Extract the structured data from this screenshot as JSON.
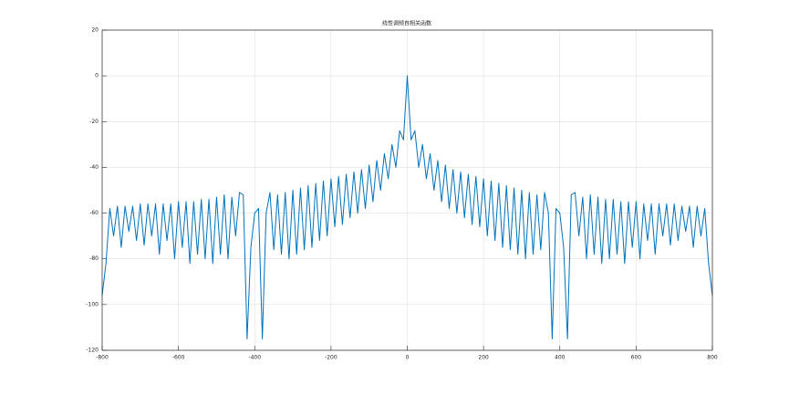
{
  "chart_data": {
    "type": "line",
    "title": "线性调频自相关函数",
    "x": [
      -800,
      -790,
      -780,
      -770,
      -760,
      -750,
      -740,
      -730,
      -720,
      -710,
      -700,
      -690,
      -680,
      -670,
      -660,
      -650,
      -640,
      -630,
      -620,
      -610,
      -600,
      -590,
      -580,
      -570,
      -560,
      -550,
      -540,
      -530,
      -520,
      -510,
      -500,
      -490,
      -480,
      -470,
      -460,
      -450,
      -440,
      -430,
      -420,
      -410,
      -400,
      -390,
      -380,
      -370,
      -360,
      -350,
      -340,
      -330,
      -320,
      -310,
      -300,
      -290,
      -280,
      -270,
      -260,
      -250,
      -240,
      -230,
      -220,
      -210,
      -200,
      -190,
      -180,
      -170,
      -160,
      -150,
      -140,
      -130,
      -120,
      -110,
      -100,
      -90,
      -80,
      -70,
      -60,
      -50,
      -40,
      -30,
      -20,
      -10,
      0,
      10,
      20,
      30,
      40,
      50,
      60,
      70,
      80,
      90,
      100,
      110,
      120,
      130,
      140,
      150,
      160,
      170,
      180,
      190,
      200,
      210,
      220,
      230,
      240,
      250,
      260,
      270,
      280,
      290,
      300,
      310,
      320,
      330,
      340,
      350,
      360,
      370,
      380,
      390,
      400,
      410,
      420,
      430,
      440,
      450,
      460,
      470,
      480,
      490,
      500,
      510,
      520,
      530,
      540,
      550,
      560,
      570,
      580,
      590,
      600,
      610,
      620,
      630,
      640,
      650,
      660,
      670,
      680,
      690,
      700,
      710,
      720,
      730,
      740,
      750,
      760,
      770,
      780,
      790,
      800
    ],
    "series": [
      {
        "color": "#0072bd",
        "values": [
          -96,
          -82,
          -58,
          -70,
          -57,
          -75,
          -57,
          -68,
          -57,
          -72,
          -56,
          -74,
          -56,
          -70,
          -56,
          -78,
          -56,
          -72,
          -56,
          -80,
          -55,
          -75,
          -55,
          -82,
          -55,
          -78,
          -54,
          -80,
          -54,
          -82,
          -53,
          -78,
          -52,
          -80,
          -53,
          -70,
          -51,
          -52,
          -115,
          -75,
          -60,
          -58,
          -115,
          -60,
          -51,
          -76,
          -52,
          -78,
          -51,
          -80,
          -50,
          -78,
          -49,
          -76,
          -48,
          -75,
          -47,
          -72,
          -46,
          -70,
          -45,
          -66,
          -44,
          -65,
          -43,
          -62,
          -42,
          -60,
          -41,
          -58,
          -39,
          -55,
          -37,
          -50,
          -34,
          -45,
          -30,
          -40,
          -24,
          -28,
          0,
          -28,
          -24,
          -40,
          -30,
          -45,
          -34,
          -50,
          -37,
          -55,
          -39,
          -58,
          -41,
          -60,
          -42,
          -62,
          -43,
          -65,
          -44,
          -66,
          -45,
          -70,
          -46,
          -72,
          -47,
          -75,
          -48,
          -76,
          -49,
          -78,
          -50,
          -80,
          -51,
          -78,
          -52,
          -76,
          -51,
          -60,
          -115,
          -58,
          -60,
          -75,
          -115,
          -52,
          -51,
          -70,
          -53,
          -80,
          -52,
          -78,
          -53,
          -82,
          -54,
          -80,
          -54,
          -78,
          -55,
          -82,
          -55,
          -75,
          -55,
          -80,
          -56,
          -72,
          -56,
          -78,
          -56,
          -70,
          -56,
          -74,
          -56,
          -72,
          -57,
          -68,
          -57,
          -75,
          -57,
          -70,
          -58,
          -82,
          -96
        ]
      }
    ],
    "xlim": [
      -800,
      800
    ],
    "xticks": [
      -800,
      -600,
      -400,
      -200,
      0,
      200,
      400,
      600,
      800
    ],
    "ylim": [
      -120,
      20
    ],
    "yticks": [
      -120,
      -100,
      -80,
      -60,
      -40,
      -20,
      0,
      20
    ],
    "grid": true
  }
}
